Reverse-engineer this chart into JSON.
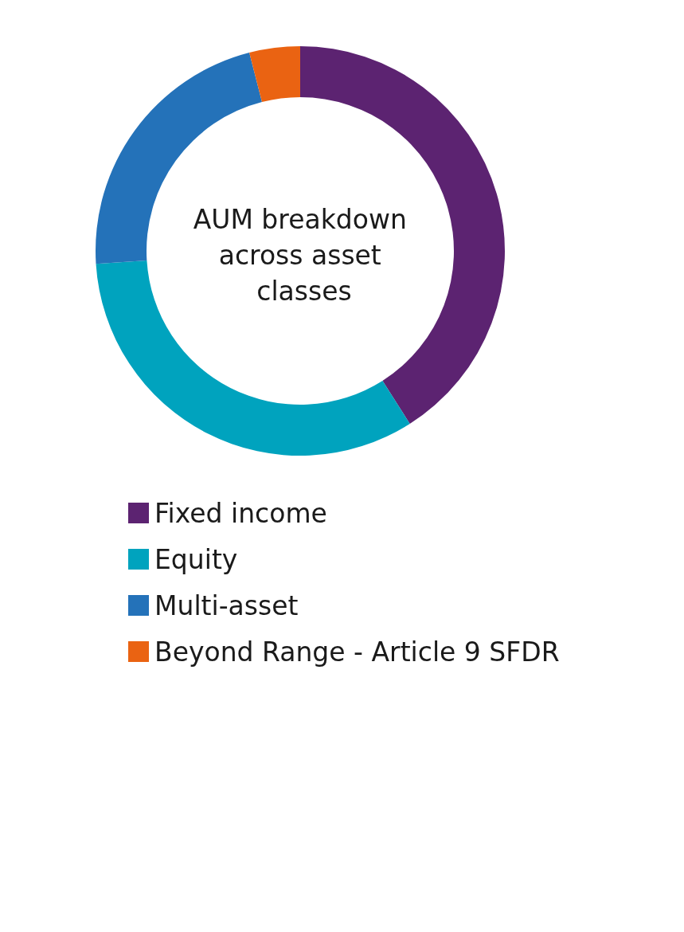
{
  "chart_data": {
    "type": "donut",
    "title": "AUM breakdown across asset classes",
    "categories": [
      "Fixed income",
      "Equity",
      "Multi-asset",
      "Beyond Range - Article 9 SFDR"
    ],
    "values": [
      41,
      33,
      22,
      4
    ],
    "colors": [
      "#5c2371",
      "#00a3be",
      "#2472b9",
      "#ea6312"
    ],
    "legend": "bottom"
  }
}
